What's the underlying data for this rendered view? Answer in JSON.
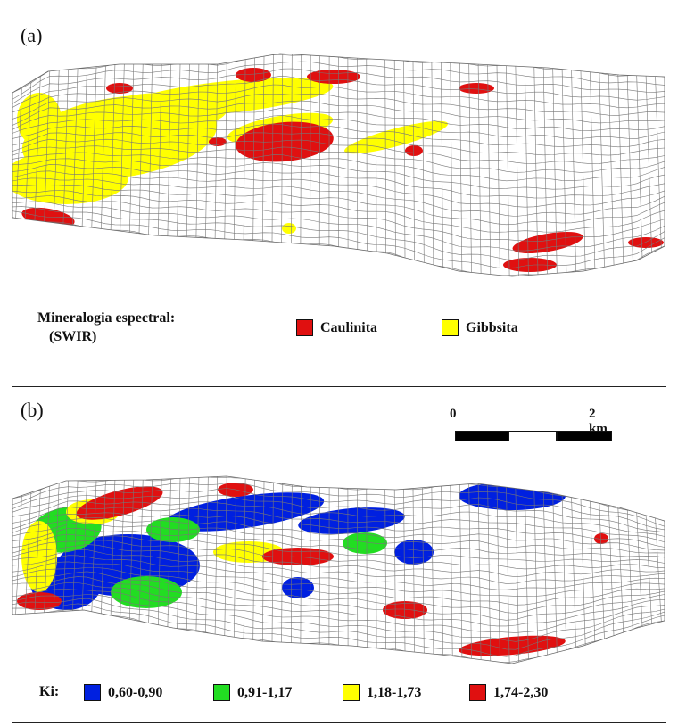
{
  "panel_a": {
    "label": "(a)",
    "legend_title": "Mineralogia espectral:",
    "legend_subtitle": "(SWIR)",
    "items": [
      {
        "label": "Caulinita",
        "color": "#e01010"
      },
      {
        "label": "Gibbsita",
        "color": "#ffff00"
      }
    ]
  },
  "panel_b": {
    "label": "(b)",
    "scale": {
      "start": "0",
      "end": "2 km"
    },
    "legend_title": "Ki:",
    "items": [
      {
        "label": "0,60-0,90",
        "color": "#0020e0"
      },
      {
        "label": "0,91-1,17",
        "color": "#22dd22"
      },
      {
        "label": "1,18-1,73",
        "color": "#ffff00"
      },
      {
        "label": "1,74-2,30",
        "color": "#e01010"
      }
    ]
  }
}
